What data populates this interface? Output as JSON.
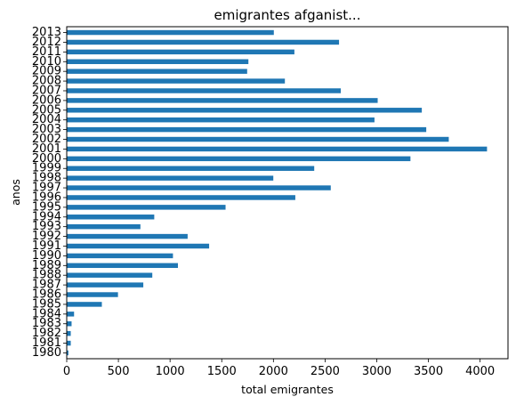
{
  "chart_data": {
    "type": "bar",
    "orientation": "horizontal",
    "title": "emigrantes afganist...",
    "xlabel": "total emigrantes",
    "ylabel": "anos",
    "xlim": [
      0,
      4270
    ],
    "xticks": [
      0,
      500,
      1000,
      1500,
      2000,
      2500,
      3000,
      3500,
      4000
    ],
    "categories": [
      "1980",
      "1981",
      "1982",
      "1983",
      "1984",
      "1985",
      "1986",
      "1987",
      "1988",
      "1989",
      "1990",
      "1991",
      "1992",
      "1993",
      "1994",
      "1995",
      "1996",
      "1997",
      "1998",
      "1999",
      "2000",
      "2001",
      "2002",
      "2003",
      "2004",
      "2005",
      "2006",
      "2007",
      "2008",
      "2009",
      "2010",
      "2011",
      "2012",
      "2013"
    ],
    "values": [
      16,
      39,
      39,
      47,
      71,
      340,
      496,
      741,
      828,
      1076,
      1028,
      1378,
      1170,
      713,
      847,
      1537,
      2212,
      2555,
      1999,
      2395,
      3326,
      4067,
      3697,
      3479,
      2978,
      3436,
      3009,
      2652,
      2111,
      1746,
      1758,
      2203,
      2635,
      2004
    ],
    "bar_color": "#1f77b4",
    "grid": false,
    "legend": "none"
  }
}
